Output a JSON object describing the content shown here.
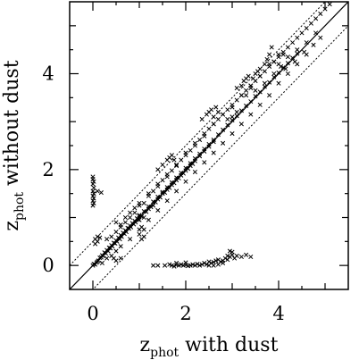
{
  "chart_data": {
    "type": "scatter",
    "xlabel": {
      "base": "z",
      "sub": "phot",
      "rest": " with dust"
    },
    "ylabel": {
      "base": "z",
      "sub": "phot",
      "rest": " without dust"
    },
    "xlim": [
      -0.5,
      5.5
    ],
    "ylim": [
      -0.5,
      5.5
    ],
    "xticks": [
      0,
      2,
      4
    ],
    "yticks": [
      0,
      2,
      4
    ],
    "grid": false,
    "legend": "none",
    "marker": "x",
    "lines": [
      {
        "style": "solid",
        "slope": 1,
        "intercept": 0
      },
      {
        "style": "dotted",
        "slope": 1,
        "intercept": 0.5
      },
      {
        "style": "dotted",
        "slope": 1,
        "intercept": -0.5
      }
    ],
    "points": [
      [
        0.0,
        0.0
      ],
      [
        0.02,
        0.03
      ],
      [
        0.05,
        0.02
      ],
      [
        0.08,
        0.06
      ],
      [
        0.1,
        0.08
      ],
      [
        0.12,
        0.1
      ],
      [
        0.15,
        0.16
      ],
      [
        0.18,
        0.17
      ],
      [
        0.2,
        0.21
      ],
      [
        0.22,
        0.2
      ],
      [
        0.25,
        0.27
      ],
      [
        0.28,
        0.25
      ],
      [
        0.3,
        0.32
      ],
      [
        0.33,
        0.3
      ],
      [
        0.35,
        0.37
      ],
      [
        0.38,
        0.36
      ],
      [
        0.4,
        0.42
      ],
      [
        0.42,
        0.4
      ],
      [
        0.45,
        0.47
      ],
      [
        0.48,
        0.46
      ],
      [
        0.5,
        0.52
      ],
      [
        0.52,
        0.5
      ],
      [
        0.55,
        0.58
      ],
      [
        0.58,
        0.55
      ],
      [
        0.6,
        0.63
      ],
      [
        0.62,
        0.6
      ],
      [
        0.65,
        0.68
      ],
      [
        0.68,
        0.66
      ],
      [
        0.7,
        0.73
      ],
      [
        0.72,
        0.7
      ],
      [
        0.75,
        0.78
      ],
      [
        0.78,
        0.77
      ],
      [
        0.8,
        0.83
      ],
      [
        0.82,
        0.8
      ],
      [
        0.85,
        0.88
      ],
      [
        0.88,
        0.86
      ],
      [
        0.9,
        0.93
      ],
      [
        0.92,
        0.9
      ],
      [
        0.95,
        0.98
      ],
      [
        0.98,
        0.96
      ],
      [
        1.0,
        1.03
      ],
      [
        1.05,
        1.02
      ],
      [
        1.1,
        1.13
      ],
      [
        1.15,
        1.12
      ],
      [
        1.2,
        1.23
      ],
      [
        1.25,
        1.22
      ],
      [
        1.3,
        1.33
      ],
      [
        1.35,
        1.32
      ],
      [
        1.4,
        1.43
      ],
      [
        1.45,
        1.42
      ],
      [
        1.5,
        1.53
      ],
      [
        1.55,
        1.52
      ],
      [
        1.6,
        1.63
      ],
      [
        1.65,
        1.62
      ],
      [
        1.7,
        1.73
      ],
      [
        1.75,
        1.72
      ],
      [
        1.8,
        1.83
      ],
      [
        1.85,
        1.82
      ],
      [
        1.9,
        1.93
      ],
      [
        1.95,
        1.92
      ],
      [
        2.0,
        2.03
      ],
      [
        2.05,
        2.02
      ],
      [
        2.1,
        2.13
      ],
      [
        2.15,
        2.12
      ],
      [
        2.2,
        2.23
      ],
      [
        2.3,
        2.33
      ],
      [
        2.4,
        2.43
      ],
      [
        2.5,
        2.53
      ],
      [
        2.6,
        2.62
      ],
      [
        2.7,
        2.73
      ],
      [
        2.8,
        2.83
      ],
      [
        2.9,
        2.93
      ],
      [
        3.0,
        3.03
      ],
      [
        3.1,
        3.12
      ],
      [
        3.2,
        3.23
      ],
      [
        3.3,
        3.33
      ],
      [
        3.4,
        3.42
      ],
      [
        3.5,
        3.53
      ],
      [
        3.6,
        3.62
      ],
      [
        3.7,
        3.73
      ],
      [
        3.8,
        3.82
      ],
      [
        3.9,
        3.93
      ],
      [
        4.0,
        4.02
      ],
      [
        4.1,
        4.13
      ],
      [
        4.2,
        4.22
      ],
      [
        4.3,
        4.33
      ],
      [
        4.4,
        4.42
      ],
      [
        0.3,
        0.55
      ],
      [
        0.4,
        0.6
      ],
      [
        0.5,
        0.7
      ],
      [
        0.6,
        0.8
      ],
      [
        0.7,
        0.9
      ],
      [
        0.8,
        1.0
      ],
      [
        0.9,
        1.1
      ],
      [
        1.0,
        1.25
      ],
      [
        1.1,
        1.3
      ],
      [
        1.2,
        1.45
      ],
      [
        1.3,
        1.55
      ],
      [
        1.4,
        1.65
      ],
      [
        1.5,
        1.78
      ],
      [
        1.6,
        1.85
      ],
      [
        1.7,
        1.98
      ],
      [
        1.8,
        2.08
      ],
      [
        1.9,
        2.2
      ],
      [
        2.0,
        2.3
      ],
      [
        2.1,
        2.4
      ],
      [
        2.2,
        2.5
      ],
      [
        2.3,
        2.62
      ],
      [
        2.4,
        2.7
      ],
      [
        2.5,
        2.85
      ],
      [
        2.6,
        2.95
      ],
      [
        2.7,
        3.05
      ],
      [
        2.8,
        3.15
      ],
      [
        2.9,
        3.25
      ],
      [
        3.0,
        3.35
      ],
      [
        3.1,
        3.45
      ],
      [
        3.2,
        3.55
      ],
      [
        3.3,
        3.65
      ],
      [
        3.4,
        3.75
      ],
      [
        3.5,
        3.85
      ],
      [
        3.6,
        3.95
      ],
      [
        3.7,
        4.05
      ],
      [
        3.8,
        4.15
      ],
      [
        3.9,
        4.25
      ],
      [
        4.0,
        4.35
      ],
      [
        4.1,
        4.45
      ],
      [
        4.2,
        4.55
      ],
      [
        4.3,
        4.65
      ],
      [
        4.4,
        4.75
      ],
      [
        4.5,
        4.85
      ],
      [
        4.6,
        4.95
      ],
      [
        4.7,
        5.05
      ],
      [
        4.8,
        5.15
      ],
      [
        4.9,
        5.25
      ],
      [
        5.0,
        5.35
      ],
      [
        5.1,
        5.45
      ],
      [
        0.5,
        0.9
      ],
      [
        0.6,
        0.85
      ],
      [
        0.7,
        1.0
      ],
      [
        0.8,
        1.1
      ],
      [
        0.9,
        1.2
      ],
      [
        1.0,
        1.3
      ],
      [
        1.2,
        1.5
      ],
      [
        1.4,
        1.7
      ],
      [
        1.6,
        1.9
      ],
      [
        1.8,
        2.1
      ],
      [
        2.0,
        2.35
      ],
      [
        2.2,
        2.55
      ],
      [
        2.4,
        2.75
      ],
      [
        2.6,
        2.95
      ],
      [
        2.8,
        3.15
      ],
      [
        3.0,
        3.3
      ],
      [
        3.2,
        3.55
      ],
      [
        3.4,
        3.75
      ],
      [
        3.6,
        3.95
      ],
      [
        3.8,
        4.2
      ],
      [
        4.0,
        4.4
      ],
      [
        2.9,
        3.05
      ],
      [
        3.0,
        3.1
      ],
      [
        3.1,
        3.2
      ],
      [
        3.3,
        3.55
      ],
      [
        3.5,
        3.65
      ],
      [
        3.7,
        3.8
      ],
      [
        3.9,
        4.0
      ],
      [
        4.2,
        4.35
      ],
      [
        4.4,
        4.5
      ],
      [
        4.6,
        4.65
      ],
      [
        4.8,
        4.85
      ],
      [
        4.9,
        4.75
      ],
      [
        4.75,
        4.6
      ],
      [
        4.55,
        4.45
      ],
      [
        4.35,
        4.25
      ],
      [
        4.15,
        4.1
      ],
      [
        0.2,
        0.05
      ],
      [
        0.3,
        0.15
      ],
      [
        0.4,
        0.2
      ],
      [
        0.5,
        0.3
      ],
      [
        0.6,
        0.4
      ],
      [
        0.8,
        0.55
      ],
      [
        1.0,
        0.75
      ],
      [
        1.2,
        0.95
      ],
      [
        1.4,
        1.15
      ],
      [
        1.6,
        1.35
      ],
      [
        1.8,
        1.55
      ],
      [
        2.0,
        1.75
      ],
      [
        2.2,
        1.95
      ],
      [
        2.4,
        2.15
      ],
      [
        2.6,
        2.35
      ],
      [
        2.8,
        2.55
      ],
      [
        3.0,
        2.75
      ],
      [
        3.2,
        2.95
      ],
      [
        3.4,
        3.15
      ],
      [
        3.6,
        3.35
      ],
      [
        3.8,
        3.55
      ],
      [
        4.0,
        3.8
      ],
      [
        4.2,
        4.0
      ],
      [
        4.4,
        4.2
      ],
      [
        4.6,
        4.4
      ],
      [
        0.05,
        0.55
      ],
      [
        0.1,
        0.6
      ],
      [
        0.1,
        0.5
      ],
      [
        0.15,
        0.58
      ],
      [
        0.05,
        0.45
      ],
      [
        0.45,
        0.15
      ],
      [
        0.5,
        0.1
      ],
      [
        0.6,
        0.15
      ],
      [
        1.0,
        0.65
      ],
      [
        1.1,
        0.75
      ],
      [
        1.05,
        0.8
      ],
      [
        1.1,
        0.6
      ],
      [
        1.05,
        0.55
      ],
      [
        1.4,
        2.0
      ],
      [
        1.5,
        2.1
      ],
      [
        1.6,
        2.2
      ],
      [
        1.65,
        2.25
      ],
      [
        1.7,
        2.3
      ],
      [
        1.75,
        2.2
      ],
      [
        2.35,
        3.05
      ],
      [
        2.45,
        3.15
      ],
      [
        2.5,
        3.2
      ],
      [
        2.55,
        3.25
      ],
      [
        2.6,
        3.1
      ],
      [
        2.65,
        3.3
      ],
      [
        2.7,
        3.2
      ],
      [
        3.1,
        3.7
      ],
      [
        3.2,
        3.75
      ],
      [
        3.25,
        3.85
      ],
      [
        3.3,
        3.9
      ],
      [
        3.35,
        3.95
      ],
      [
        3.4,
        3.7
      ],
      [
        3.45,
        3.9
      ],
      [
        3.5,
        4.0
      ],
      [
        3.55,
        4.05
      ],
      [
        3.6,
        4.1
      ],
      [
        3.7,
        4.2
      ],
      [
        3.75,
        4.3
      ],
      [
        3.8,
        4.4
      ],
      [
        3.85,
        4.55
      ],
      [
        3.9,
        4.25
      ],
      [
        4.0,
        4.2
      ],
      [
        4.05,
        4.15
      ],
      [
        4.1,
        4.4
      ],
      [
        0.0,
        1.85
      ],
      [
        0.0,
        1.8
      ],
      [
        0.02,
        1.75
      ],
      [
        0.0,
        1.7
      ],
      [
        0.02,
        1.62
      ],
      [
        0.0,
        1.55
      ],
      [
        0.02,
        1.5
      ],
      [
        0.0,
        1.45
      ],
      [
        0.02,
        1.4
      ],
      [
        0.0,
        1.35
      ],
      [
        0.02,
        1.3
      ],
      [
        0.1,
        1.55
      ],
      [
        0.18,
        1.52
      ],
      [
        0.0,
        1.25
      ],
      [
        1.3,
        0.0
      ],
      [
        1.4,
        0.0
      ],
      [
        1.55,
        0.0
      ],
      [
        1.65,
        0.02
      ],
      [
        1.7,
        0.0
      ],
      [
        1.75,
        -0.02
      ],
      [
        1.8,
        0.01
      ],
      [
        1.85,
        0.0
      ],
      [
        1.9,
        0.02
      ],
      [
        1.95,
        0.0
      ],
      [
        2.0,
        0.01
      ],
      [
        2.05,
        -0.01
      ],
      [
        2.1,
        0.0
      ],
      [
        2.15,
        0.02
      ],
      [
        2.2,
        0.0
      ],
      [
        2.25,
        0.03
      ],
      [
        2.3,
        0.0
      ],
      [
        2.35,
        0.02
      ],
      [
        2.4,
        0.05
      ],
      [
        2.45,
        0.02
      ],
      [
        2.5,
        0.08
      ],
      [
        2.55,
        0.05
      ],
      [
        2.6,
        0.07
      ],
      [
        2.65,
        0.1
      ],
      [
        2.7,
        0.12
      ],
      [
        2.75,
        0.08
      ],
      [
        2.8,
        0.1
      ],
      [
        2.85,
        0.15
      ],
      [
        2.9,
        0.2
      ],
      [
        2.95,
        0.18
      ],
      [
        3.0,
        0.22
      ],
      [
        3.05,
        0.15
      ],
      [
        3.1,
        0.2
      ],
      [
        3.2,
        0.18
      ],
      [
        3.3,
        0.22
      ],
      [
        3.4,
        0.18
      ],
      [
        2.95,
        0.3
      ],
      [
        3.0,
        0.28
      ],
      [
        2.9,
        0.12
      ],
      [
        2.8,
        0.05
      ],
      [
        2.7,
        0.02
      ],
      [
        2.6,
        0.0
      ],
      [
        2.5,
        0.0
      ],
      [
        2.0,
        0.06
      ],
      [
        1.8,
        0.05
      ],
      [
        1.0,
        0.95
      ],
      [
        1.0,
        1.05
      ],
      [
        1.1,
        1.0
      ],
      [
        1.2,
        1.18
      ],
      [
        1.3,
        1.25
      ],
      [
        1.4,
        1.38
      ],
      [
        1.5,
        1.5
      ],
      [
        1.6,
        1.58
      ],
      [
        1.7,
        1.68
      ],
      [
        1.8,
        1.78
      ],
      [
        1.9,
        1.88
      ],
      [
        2.0,
        1.98
      ],
      [
        2.1,
        2.08
      ],
      [
        2.2,
        2.18
      ],
      [
        2.3,
        2.28
      ],
      [
        2.4,
        2.38
      ],
      [
        2.5,
        2.48
      ],
      [
        2.6,
        2.58
      ]
    ]
  }
}
